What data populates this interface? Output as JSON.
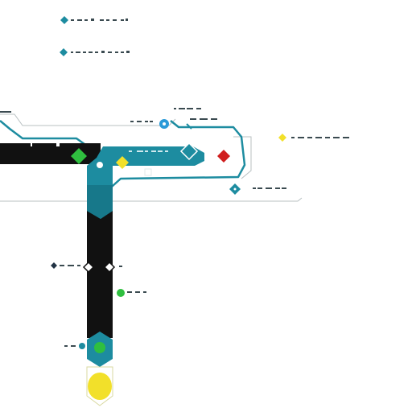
{
  "colors": {
    "black": "#111111",
    "teal": "#1d8ca0",
    "teal_dark": "#0f6f80",
    "teal_light": "#3aa8b8",
    "green": "#2fbf3f",
    "yellow": "#f2e02a",
    "red": "#d01f1f",
    "blue": "#2b9ad8",
    "gray": "#9aa3a6"
  },
  "legend": {
    "items": [
      {
        "icon": "teal-diamond-icon",
        "color": "#1d8ca0"
      },
      {
        "icon": "teal-diamond-icon",
        "color": "#1d8ca0"
      }
    ]
  },
  "markers": [
    {
      "name": "green-diamond-marker",
      "color": "#2fbf3f"
    },
    {
      "name": "yellow-diamond-marker",
      "color": "#f2e02a"
    },
    {
      "name": "red-diamond-marker",
      "color": "#d01f1f"
    },
    {
      "name": "blue-circle-marker",
      "color": "#2b9ad8"
    },
    {
      "name": "teal-diamond-marker",
      "color": "#1d8ca0"
    },
    {
      "name": "green-circle-marker",
      "color": "#2fbf3f"
    },
    {
      "name": "yellow-circle-marker",
      "color": "#f2e02a"
    },
    {
      "name": "dark-diamond-marker",
      "color": "#223344"
    }
  ]
}
